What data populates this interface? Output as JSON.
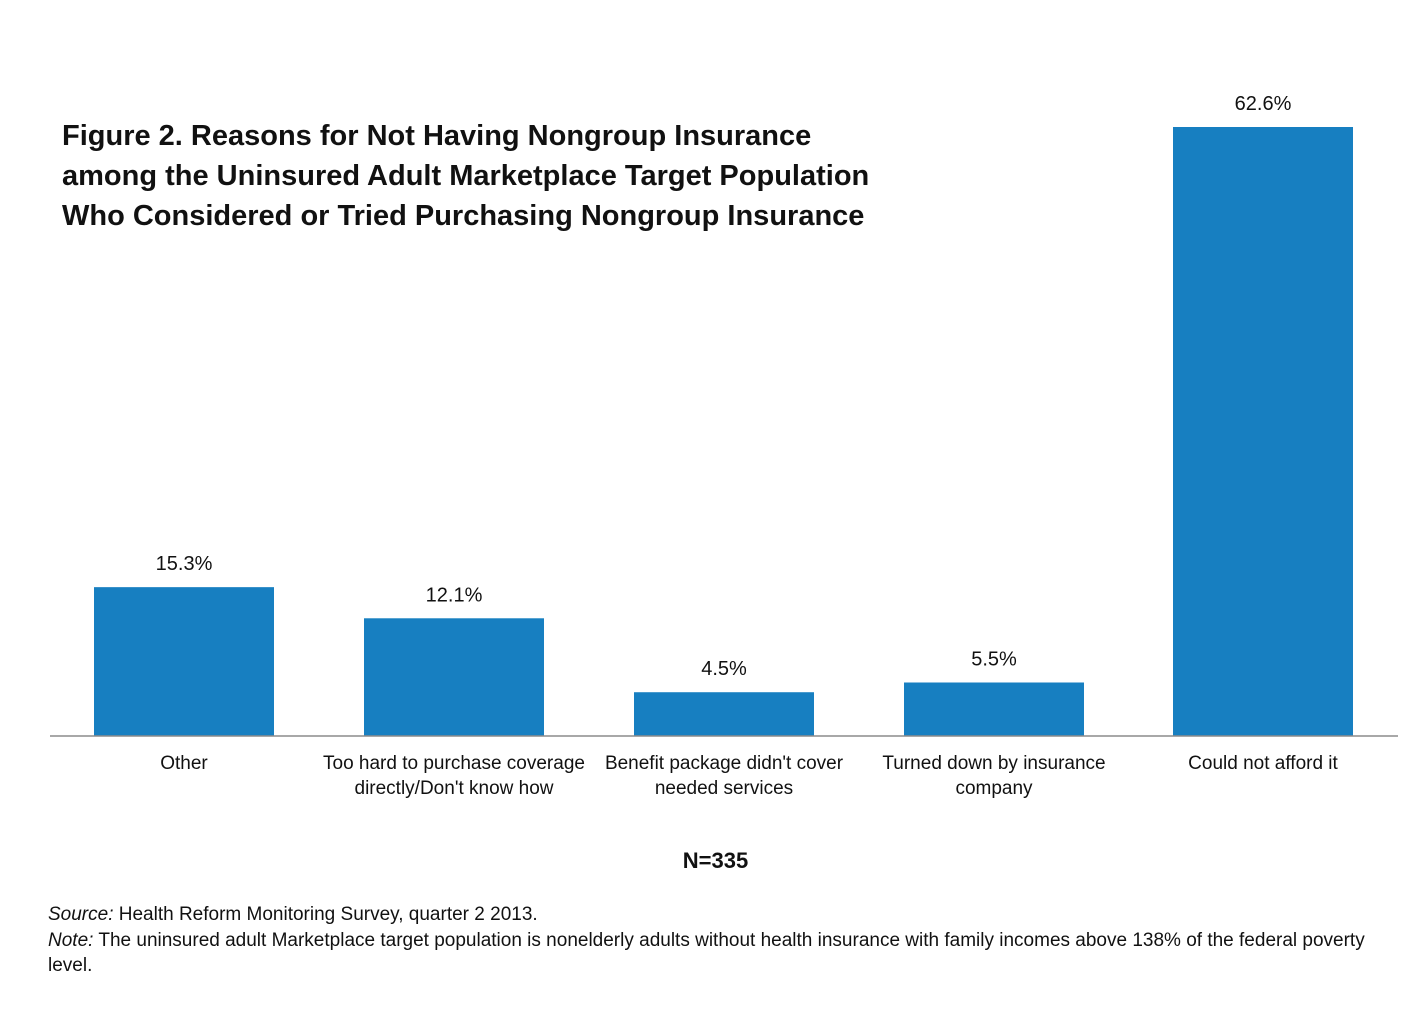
{
  "chart_data": {
    "type": "bar",
    "title": "Figure 2. Reasons for Not Having Nongroup Insurance\namong the Uninsured Adult Marketplace Target Population\nWho  Considered or Tried Purchasing Nongroup Insurance",
    "categories": [
      "Other",
      "Too hard to purchase coverage directly/Don't know how",
      "Benefit package didn't cover needed services",
      "Turned down by insurance company",
      "Could not afford it"
    ],
    "values": [
      15.3,
      12.1,
      4.5,
      5.5,
      62.6
    ],
    "value_labels": [
      "15.3%",
      "12.1%",
      "4.5%",
      "5.5%",
      "62.6%"
    ],
    "ylim": [
      0,
      62.6
    ],
    "grid": false,
    "bar_color": "#177fc1",
    "axis_color": "#8c8c8c"
  },
  "sample_size": "N=335",
  "source": {
    "label": "Source:",
    "text": " Health Reform Monitoring Survey, quarter 2 2013."
  },
  "note": {
    "label": "Note:",
    "text": " The uninsured adult  Marketplace target population is nonelderly adults without health insurance with family incomes above 138% of the federal poverty level."
  }
}
